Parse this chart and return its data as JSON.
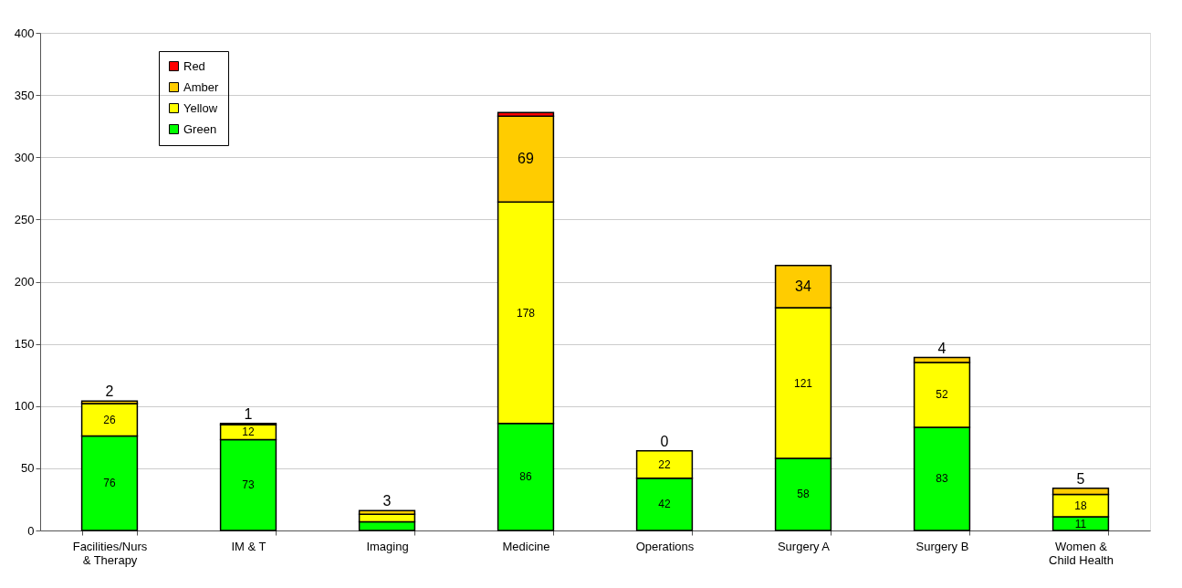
{
  "chart_data": {
    "type": "bar",
    "stacked": true,
    "categories": [
      "Facilities/Nurs & Therapy",
      "IM & T",
      "Imaging",
      "Medicine",
      "Operations",
      "Surgery A",
      "Surgery B",
      "Women & Child Health"
    ],
    "series": [
      {
        "name": "Green",
        "color": "#00ff00",
        "values": [
          76,
          73,
          7,
          86,
          42,
          58,
          83,
          11
        ],
        "value_labels": [
          "76",
          "73",
          null,
          "86",
          "42",
          "58",
          "83",
          "11"
        ]
      },
      {
        "name": "Yellow",
        "color": "#ffff00",
        "values": [
          26,
          12,
          6,
          178,
          22,
          121,
          52,
          18
        ],
        "value_labels": [
          "26",
          "12",
          null,
          "178",
          "22",
          "121",
          "52",
          "18"
        ]
      },
      {
        "name": "Amber",
        "color": "#ffcc00",
        "values": [
          2,
          1,
          3,
          69,
          0,
          34,
          4,
          5
        ],
        "value_labels": [
          "2",
          "1",
          "3",
          "69",
          "0",
          "34",
          "4",
          "5"
        ]
      },
      {
        "name": "Red",
        "color": "#ff0000",
        "values": [
          0,
          0,
          0,
          3,
          0,
          0,
          0,
          0
        ],
        "value_labels": [
          null,
          null,
          null,
          null,
          null,
          null,
          null,
          null
        ]
      }
    ],
    "ylim": [
      0,
      400
    ],
    "yticks": [
      0,
      50,
      100,
      150,
      200,
      250,
      300,
      350,
      400
    ],
    "grid": "y",
    "legend": "top left"
  }
}
